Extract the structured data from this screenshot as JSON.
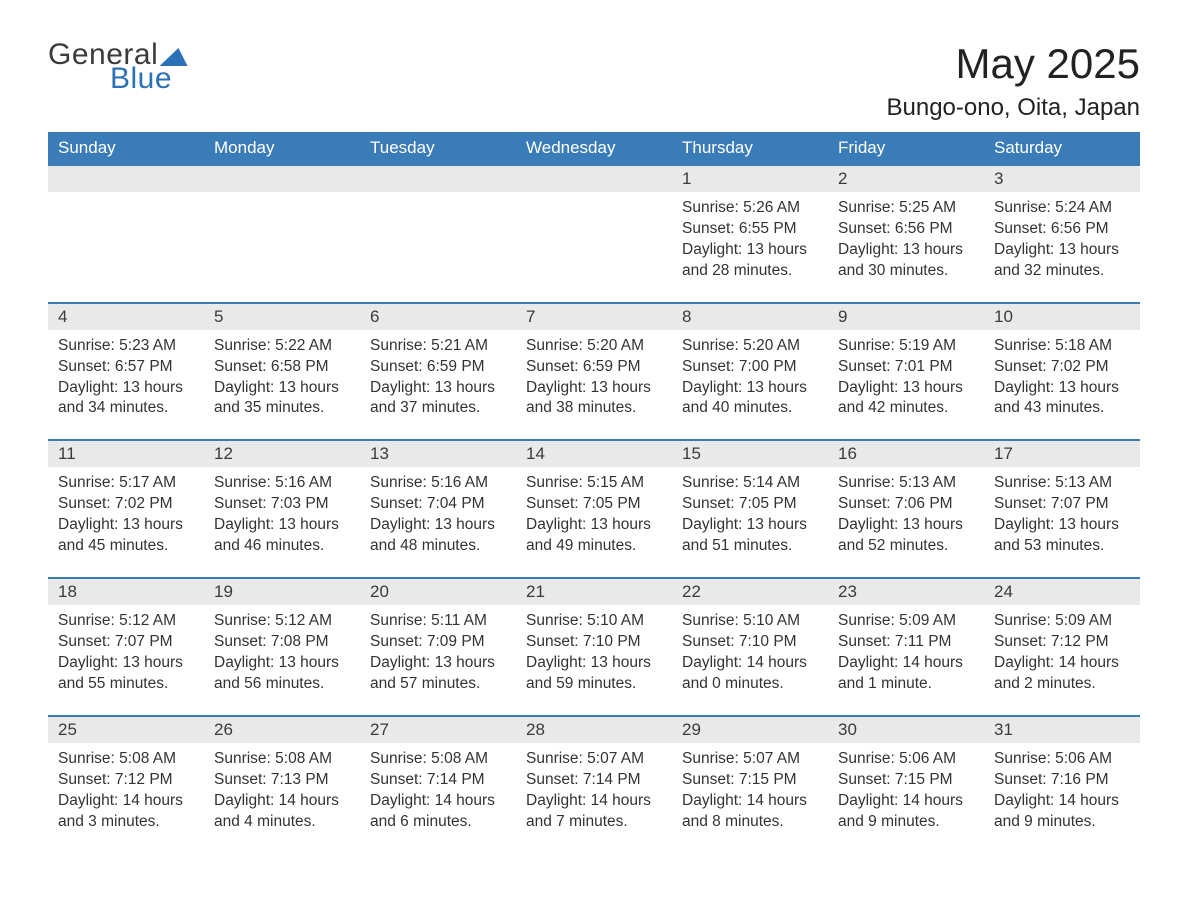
{
  "brand": {
    "line1": "General",
    "line2": "Blue",
    "accent_color": "#2a72b5"
  },
  "title": {
    "month": "May 2025",
    "location": "Bungo-ono, Oita, Japan"
  },
  "colors": {
    "header_bg": "#3a7cb8",
    "header_text": "#ffffff",
    "daynum_bg": "#e9e9e9",
    "row_divider": "#3a7cb8",
    "body_text": "#333333",
    "page_bg": "#ffffff"
  },
  "day_headers": [
    "Sunday",
    "Monday",
    "Tuesday",
    "Wednesday",
    "Thursday",
    "Friday",
    "Saturday"
  ],
  "weeks": [
    [
      {
        "empty": true
      },
      {
        "empty": true
      },
      {
        "empty": true
      },
      {
        "empty": true
      },
      {
        "num": "1",
        "sunrise": "Sunrise: 5:26 AM",
        "sunset": "Sunset: 6:55 PM",
        "daylight": "Daylight: 13 hours and 28 minutes."
      },
      {
        "num": "2",
        "sunrise": "Sunrise: 5:25 AM",
        "sunset": "Sunset: 6:56 PM",
        "daylight": "Daylight: 13 hours and 30 minutes."
      },
      {
        "num": "3",
        "sunrise": "Sunrise: 5:24 AM",
        "sunset": "Sunset: 6:56 PM",
        "daylight": "Daylight: 13 hours and 32 minutes."
      }
    ],
    [
      {
        "num": "4",
        "sunrise": "Sunrise: 5:23 AM",
        "sunset": "Sunset: 6:57 PM",
        "daylight": "Daylight: 13 hours and 34 minutes."
      },
      {
        "num": "5",
        "sunrise": "Sunrise: 5:22 AM",
        "sunset": "Sunset: 6:58 PM",
        "daylight": "Daylight: 13 hours and 35 minutes."
      },
      {
        "num": "6",
        "sunrise": "Sunrise: 5:21 AM",
        "sunset": "Sunset: 6:59 PM",
        "daylight": "Daylight: 13 hours and 37 minutes."
      },
      {
        "num": "7",
        "sunrise": "Sunrise: 5:20 AM",
        "sunset": "Sunset: 6:59 PM",
        "daylight": "Daylight: 13 hours and 38 minutes."
      },
      {
        "num": "8",
        "sunrise": "Sunrise: 5:20 AM",
        "sunset": "Sunset: 7:00 PM",
        "daylight": "Daylight: 13 hours and 40 minutes."
      },
      {
        "num": "9",
        "sunrise": "Sunrise: 5:19 AM",
        "sunset": "Sunset: 7:01 PM",
        "daylight": "Daylight: 13 hours and 42 minutes."
      },
      {
        "num": "10",
        "sunrise": "Sunrise: 5:18 AM",
        "sunset": "Sunset: 7:02 PM",
        "daylight": "Daylight: 13 hours and 43 minutes."
      }
    ],
    [
      {
        "num": "11",
        "sunrise": "Sunrise: 5:17 AM",
        "sunset": "Sunset: 7:02 PM",
        "daylight": "Daylight: 13 hours and 45 minutes."
      },
      {
        "num": "12",
        "sunrise": "Sunrise: 5:16 AM",
        "sunset": "Sunset: 7:03 PM",
        "daylight": "Daylight: 13 hours and 46 minutes."
      },
      {
        "num": "13",
        "sunrise": "Sunrise: 5:16 AM",
        "sunset": "Sunset: 7:04 PM",
        "daylight": "Daylight: 13 hours and 48 minutes."
      },
      {
        "num": "14",
        "sunrise": "Sunrise: 5:15 AM",
        "sunset": "Sunset: 7:05 PM",
        "daylight": "Daylight: 13 hours and 49 minutes."
      },
      {
        "num": "15",
        "sunrise": "Sunrise: 5:14 AM",
        "sunset": "Sunset: 7:05 PM",
        "daylight": "Daylight: 13 hours and 51 minutes."
      },
      {
        "num": "16",
        "sunrise": "Sunrise: 5:13 AM",
        "sunset": "Sunset: 7:06 PM",
        "daylight": "Daylight: 13 hours and 52 minutes."
      },
      {
        "num": "17",
        "sunrise": "Sunrise: 5:13 AM",
        "sunset": "Sunset: 7:07 PM",
        "daylight": "Daylight: 13 hours and 53 minutes."
      }
    ],
    [
      {
        "num": "18",
        "sunrise": "Sunrise: 5:12 AM",
        "sunset": "Sunset: 7:07 PM",
        "daylight": "Daylight: 13 hours and 55 minutes."
      },
      {
        "num": "19",
        "sunrise": "Sunrise: 5:12 AM",
        "sunset": "Sunset: 7:08 PM",
        "daylight": "Daylight: 13 hours and 56 minutes."
      },
      {
        "num": "20",
        "sunrise": "Sunrise: 5:11 AM",
        "sunset": "Sunset: 7:09 PM",
        "daylight": "Daylight: 13 hours and 57 minutes."
      },
      {
        "num": "21",
        "sunrise": "Sunrise: 5:10 AM",
        "sunset": "Sunset: 7:10 PM",
        "daylight": "Daylight: 13 hours and 59 minutes."
      },
      {
        "num": "22",
        "sunrise": "Sunrise: 5:10 AM",
        "sunset": "Sunset: 7:10 PM",
        "daylight": "Daylight: 14 hours and 0 minutes."
      },
      {
        "num": "23",
        "sunrise": "Sunrise: 5:09 AM",
        "sunset": "Sunset: 7:11 PM",
        "daylight": "Daylight: 14 hours and 1 minute."
      },
      {
        "num": "24",
        "sunrise": "Sunrise: 5:09 AM",
        "sunset": "Sunset: 7:12 PM",
        "daylight": "Daylight: 14 hours and 2 minutes."
      }
    ],
    [
      {
        "num": "25",
        "sunrise": "Sunrise: 5:08 AM",
        "sunset": "Sunset: 7:12 PM",
        "daylight": "Daylight: 14 hours and 3 minutes."
      },
      {
        "num": "26",
        "sunrise": "Sunrise: 5:08 AM",
        "sunset": "Sunset: 7:13 PM",
        "daylight": "Daylight: 14 hours and 4 minutes."
      },
      {
        "num": "27",
        "sunrise": "Sunrise: 5:08 AM",
        "sunset": "Sunset: 7:14 PM",
        "daylight": "Daylight: 14 hours and 6 minutes."
      },
      {
        "num": "28",
        "sunrise": "Sunrise: 5:07 AM",
        "sunset": "Sunset: 7:14 PM",
        "daylight": "Daylight: 14 hours and 7 minutes."
      },
      {
        "num": "29",
        "sunrise": "Sunrise: 5:07 AM",
        "sunset": "Sunset: 7:15 PM",
        "daylight": "Daylight: 14 hours and 8 minutes."
      },
      {
        "num": "30",
        "sunrise": "Sunrise: 5:06 AM",
        "sunset": "Sunset: 7:15 PM",
        "daylight": "Daylight: 14 hours and 9 minutes."
      },
      {
        "num": "31",
        "sunrise": "Sunrise: 5:06 AM",
        "sunset": "Sunset: 7:16 PM",
        "daylight": "Daylight: 14 hours and 9 minutes."
      }
    ]
  ]
}
